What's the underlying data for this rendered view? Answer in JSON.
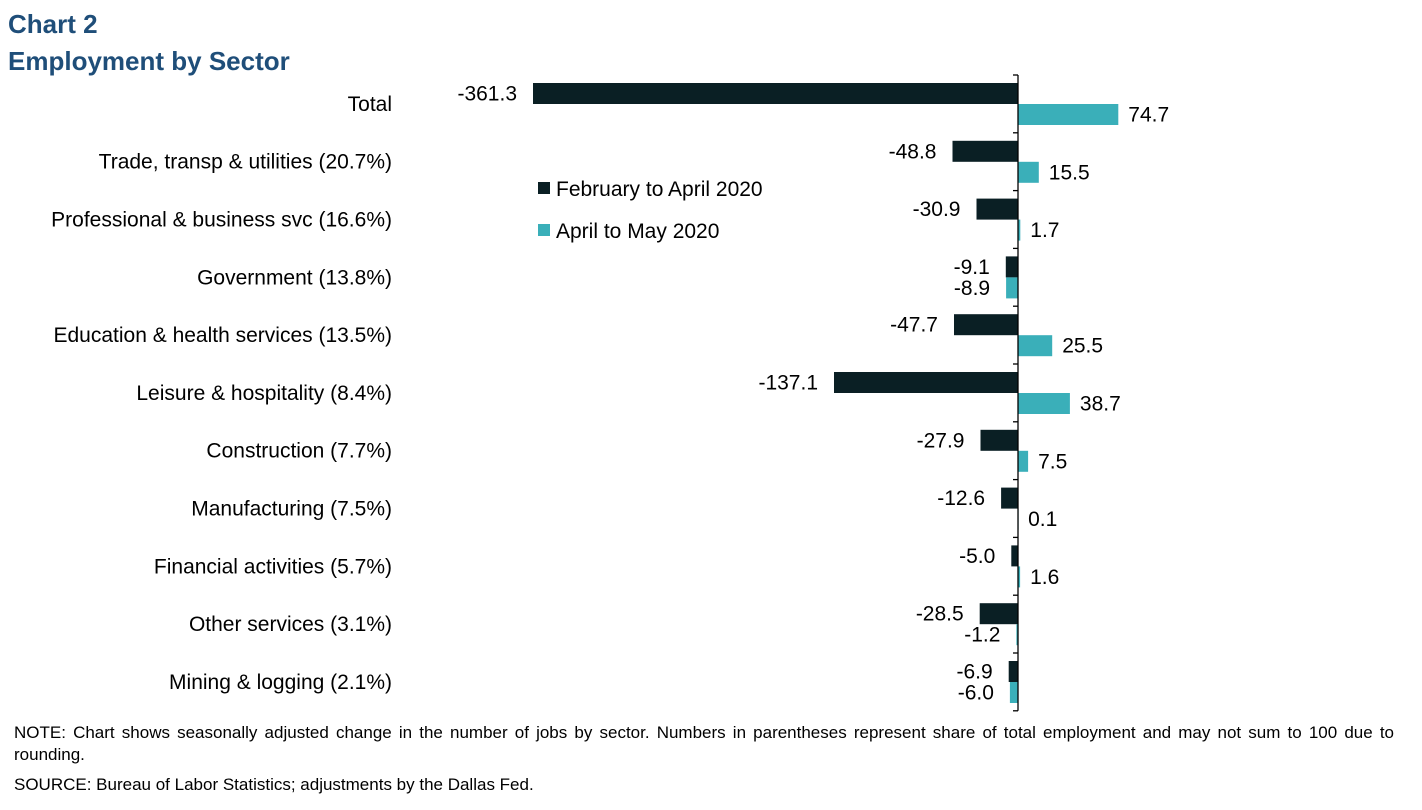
{
  "header": {
    "chart_number": "Chart 2",
    "title": "Employment by Sector"
  },
  "chart_data": {
    "type": "bar",
    "orientation": "horizontal",
    "categories": [
      "Total",
      "Trade, transp & utilities (20.7%)",
      "Professional & business svc (16.6%)",
      "Government (13.8%)",
      "Education & health services (13.5%)",
      "Leisure & hospitality (8.4%)",
      "Construction (7.7%)",
      "Manufacturing (7.5%)",
      "Financial activities (5.7%)",
      "Other services (3.1%)",
      "Mining & logging (2.1%)"
    ],
    "series": [
      {
        "name": "February to April 2020",
        "color": "#0a1f24",
        "values": [
          -361.3,
          -48.8,
          -30.9,
          -9.1,
          -47.7,
          -137.1,
          -27.9,
          -12.6,
          -5.0,
          -28.5,
          -6.9
        ],
        "labels": [
          "-361.3",
          "-48.8",
          "-30.9",
          "-9.1",
          "-47.7",
          "-137.1",
          "-27.9",
          "-12.6",
          "-5.0",
          "-28.5",
          "-6.9"
        ]
      },
      {
        "name": "April to May 2020",
        "color": "#3aafb9",
        "values": [
          74.7,
          15.5,
          1.7,
          -8.9,
          25.5,
          38.7,
          7.5,
          0.1,
          1.6,
          -1.2,
          -6.0
        ],
        "labels": [
          "74.7",
          "15.5",
          "1.7",
          "-8.9",
          "25.5",
          "38.7",
          "7.5",
          "0.1",
          "1.6",
          "-1.2",
          "-6.0"
        ]
      }
    ],
    "title": "Employment by Sector",
    "xlabel": "",
    "ylabel": "",
    "xlim": [
      -361.3,
      74.7
    ],
    "grid": false,
    "legend_position": "top-center"
  },
  "notes": {
    "note": "NOTE: Chart shows seasonally adjusted change in the number of jobs by sector. Numbers in parentheses represent share of total employment and may not sum to 100 due to rounding.",
    "source": "SOURCE: Bureau of Labor Statistics; adjustments by the Dallas Fed."
  }
}
